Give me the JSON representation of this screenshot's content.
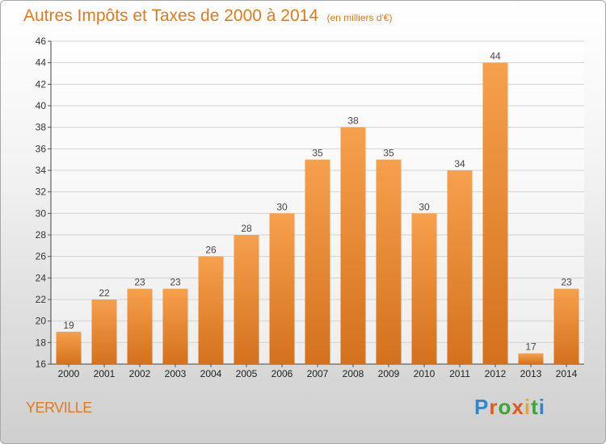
{
  "title": "Autres Impôts et Taxes de 2000 à 2014",
  "subtitle": "(en milliers d'€)",
  "location": "YERVILLE",
  "logo_text": "Proxiti",
  "colors": {
    "bar_light": "#f6a04d",
    "bar_dark": "#d4711c",
    "title": "#e07a1e"
  },
  "chart_data": {
    "type": "bar",
    "categories": [
      "2000",
      "2001",
      "2002",
      "2003",
      "2004",
      "2005",
      "2006",
      "2007",
      "2008",
      "2009",
      "2010",
      "2011",
      "2012",
      "2013",
      "2014"
    ],
    "values": [
      19,
      22,
      23,
      23,
      26,
      28,
      30,
      35,
      38,
      35,
      30,
      34,
      44,
      17,
      23
    ],
    "ylim": [
      16,
      46
    ],
    "yticks": [
      16,
      18,
      20,
      22,
      24,
      26,
      28,
      30,
      32,
      34,
      36,
      38,
      40,
      42,
      44,
      46
    ],
    "grid": true
  }
}
